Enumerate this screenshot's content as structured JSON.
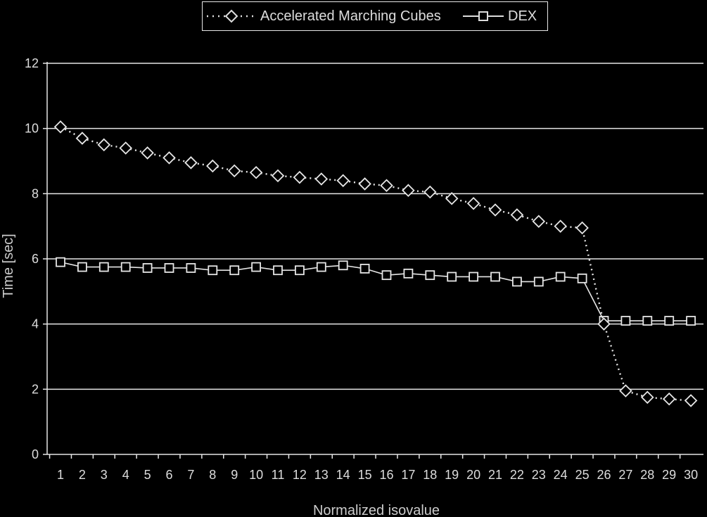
{
  "chart_data": {
    "type": "line",
    "title": "",
    "xlabel": "Normalized isovalue",
    "ylabel": "Time [sec]",
    "ylim": [
      0,
      12
    ],
    "yticks": [
      "0",
      "2",
      "4",
      "6",
      "8",
      "10",
      "12"
    ],
    "categories": [
      "1",
      "2",
      "3",
      "4",
      "5",
      "6",
      "7",
      "8",
      "9",
      "10",
      "11",
      "12",
      "13",
      "14",
      "15",
      "16",
      "17",
      "18",
      "19",
      "20",
      "21",
      "22",
      "23",
      "24",
      "25",
      "26",
      "27",
      "28",
      "29",
      "30"
    ],
    "grid": true,
    "legend": "top-center",
    "series": [
      {
        "name": "Accelerated Marching Cubes",
        "marker": "diamond",
        "line": "dotted",
        "values": [
          10.05,
          9.7,
          9.5,
          9.4,
          9.25,
          9.1,
          8.95,
          8.85,
          8.7,
          8.65,
          8.55,
          8.5,
          8.45,
          8.4,
          8.3,
          8.25,
          8.1,
          8.05,
          7.85,
          7.7,
          7.5,
          7.35,
          7.15,
          7.0,
          6.95,
          4.0,
          1.95,
          1.75,
          1.7,
          1.65
        ]
      },
      {
        "name": "DEX",
        "marker": "square",
        "line": "solid",
        "values": [
          5.9,
          5.75,
          5.75,
          5.75,
          5.72,
          5.72,
          5.72,
          5.65,
          5.65,
          5.75,
          5.65,
          5.65,
          5.75,
          5.8,
          5.7,
          5.5,
          5.55,
          5.5,
          5.45,
          5.45,
          5.45,
          5.3,
          5.3,
          5.45,
          5.4,
          4.1,
          4.1,
          4.1,
          4.1,
          4.1
        ]
      }
    ]
  },
  "colors": {
    "background": "#000000",
    "foreground": "#e6e6e6"
  }
}
